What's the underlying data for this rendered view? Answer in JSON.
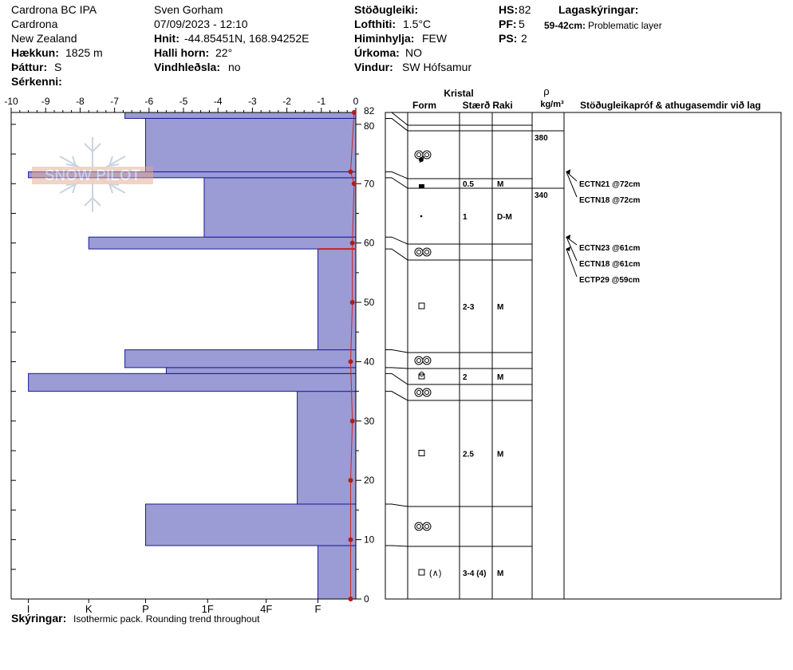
{
  "header": {
    "location": "Cardrona BC IPA",
    "area": "Cardrona",
    "country": "New Zealand",
    "elevation_label": "Hækkun:",
    "elevation_value": "1825 m",
    "aspect_label": "Þáttur:",
    "aspect_value": "S",
    "features_label": "Sérkenni:",
    "observer": "Sven Gorham",
    "datetime": "07/09/2023 - 12:10",
    "coords_label": "Hnit:",
    "coords_value": "-44.85451N, 168.94252E",
    "slope_label": "Halli horn:",
    "slope_value": "22°",
    "wind_loading_label": "Vindhleðsla:",
    "wind_loading_value": "no",
    "stability_label": "Stöðugleiki:",
    "air_temp_label": "Lofthiti:",
    "air_temp_value": "1.5°C",
    "sky_label": "Himinhylja:",
    "sky_value": "FEW",
    "precip_label": "Úrkoma:",
    "precip_value": "NO",
    "wind_label": "Vindur:",
    "wind_value": "SW Hófsamur",
    "hs_label": "HS:",
    "hs_value": "82",
    "pf_label": "PF:",
    "pf_value": "5",
    "ps_label": "PS:",
    "ps_value": "2",
    "layer_notes_label": "Lagaskýringar:",
    "layer_note_range": "59-42cm:",
    "layer_note_text": "Problematic layer"
  },
  "footer": {
    "notes_label": "Skýringar:",
    "notes_text": "Isothermic pack. Rounding trend throughout"
  },
  "watermark": "SNOW PILOT",
  "colors": {
    "hardness_fill": "#9b9bd6",
    "hardness_stroke": "#1a1a9c",
    "temperature": "#cc2222",
    "temperature_point": "#b01c1c"
  },
  "chart_data": {
    "type": "snow-profile",
    "temp_axis": {
      "min": -10,
      "max": 0,
      "ticks": [
        "-10",
        "-9",
        "-8",
        "-7",
        "-6",
        "-5",
        "-4",
        "-3",
        "-2",
        "-1",
        "0"
      ]
    },
    "height_axis": {
      "min": 0,
      "max": 82,
      "ticks": [
        "0",
        "10",
        "20",
        "30",
        "40",
        "50",
        "60",
        "70",
        "80",
        "82"
      ]
    },
    "hardness_axis": {
      "labels": [
        "I",
        "K",
        "P",
        "1F",
        "4F",
        "F"
      ],
      "values": [
        9.5,
        7.75,
        6.1,
        4.3,
        2.6,
        1.1
      ]
    },
    "hardness_layers": [
      {
        "bottom": 0,
        "top": 9,
        "hardness_temp_units": 1.1
      },
      {
        "bottom": 9,
        "top": 16,
        "hardness_temp_units": 6.1
      },
      {
        "bottom": 16,
        "top": 35,
        "hardness_temp_units": 1.7
      },
      {
        "bottom": 35,
        "top": 38,
        "hardness_temp_units": 9.5
      },
      {
        "bottom": 38,
        "top": 39,
        "hardness_temp_units": 5.5
      },
      {
        "bottom": 39,
        "top": 42,
        "hardness_temp_units": 6.7
      },
      {
        "bottom": 42,
        "top": 59,
        "hardness_temp_units": 1.1
      },
      {
        "bottom": 59,
        "top": 61,
        "hardness_temp_units": 7.75
      },
      {
        "bottom": 61,
        "top": 71,
        "hardness_temp_units": 4.4
      },
      {
        "bottom": 71,
        "top": 72,
        "hardness_temp_units": 9.5
      },
      {
        "bottom": 72,
        "top": 81,
        "hardness_temp_units": 6.1
      },
      {
        "bottom": 81,
        "top": 82,
        "hardness_temp_units": 6.7
      }
    ],
    "temperature_profile": [
      {
        "h": 0,
        "t": -0.15
      },
      {
        "h": 10,
        "t": -0.15
      },
      {
        "h": 20,
        "t": -0.15
      },
      {
        "h": 30,
        "t": -0.1
      },
      {
        "h": 40,
        "t": -0.15
      },
      {
        "h": 50,
        "t": -0.1
      },
      {
        "h": 60,
        "t": -0.1
      },
      {
        "h": 70,
        "t": -0.05
      },
      {
        "h": 72,
        "t": -0.15
      },
      {
        "h": 82,
        "t": -0.05
      }
    ],
    "problem_layer": {
      "bottom": 59,
      "top": 42
    },
    "crystal_headers": {
      "group": "Kristal",
      "form": "Form",
      "size": "Stærð",
      "moisture": "Raki",
      "density_symbol": "ρ",
      "density_unit": "kg/m³",
      "tests": "Stöðugleikapróf & athugasemdir við lag"
    },
    "layers": [
      {
        "top": 82,
        "bottom": 81,
        "form": "",
        "size": "",
        "moisture": ""
      },
      {
        "top": 81,
        "bottom": 72,
        "form": "rounded",
        "size": "",
        "moisture": ""
      },
      {
        "top": 72,
        "bottom": 71,
        "form": "",
        "size": "0.5",
        "moisture": "M"
      },
      {
        "top": 71,
        "bottom": 61,
        "form": "melt-freeze-crust",
        "size": "1",
        "moisture": "D-M"
      },
      {
        "top": 61,
        "bottom": 59,
        "form": "rounded",
        "size": "",
        "moisture": ""
      },
      {
        "top": 59,
        "bottom": 42,
        "form": "faceted",
        "size": "2-3",
        "moisture": "M"
      },
      {
        "top": 42,
        "bottom": 39,
        "form": "rounded",
        "size": "",
        "moisture": ""
      },
      {
        "top": 39,
        "bottom": 38,
        "form": "faceted-rounded",
        "size": "2",
        "moisture": "M"
      },
      {
        "top": 38,
        "bottom": 35,
        "form": "rounded",
        "size": "",
        "moisture": ""
      },
      {
        "top": 35,
        "bottom": 16,
        "form": "faceted",
        "size": "2.5",
        "moisture": "M"
      },
      {
        "top": 16,
        "bottom": 9,
        "form": "rounded",
        "size": "",
        "moisture": ""
      },
      {
        "top": 9,
        "bottom": 0,
        "form": "faceted-depth-hoar",
        "size": "3-4 (4)",
        "moisture": "M"
      }
    ],
    "densities": [
      {
        "height": 80,
        "value": "380"
      },
      {
        "height": 71,
        "value": "340"
      }
    ],
    "tests": [
      {
        "label": "ECTN21 @72cm",
        "height": 72
      },
      {
        "label": "ECTN18 @72cm",
        "height": 72
      },
      {
        "label": "ECTN23 @61cm",
        "height": 61
      },
      {
        "label": "ECTN18 @61cm",
        "height": 61
      },
      {
        "label": "ECTP29 @59cm",
        "height": 59
      }
    ]
  }
}
